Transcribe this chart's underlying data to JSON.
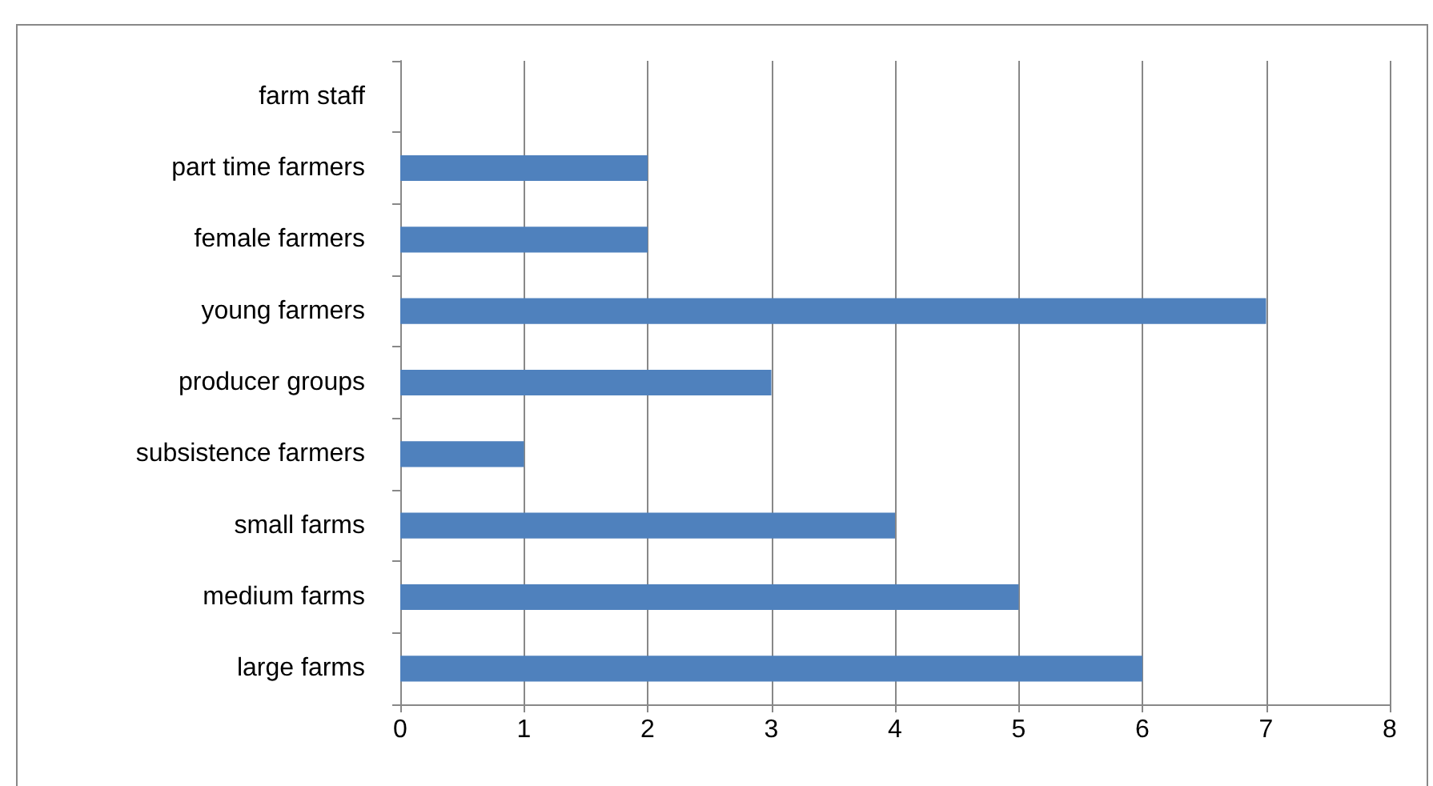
{
  "chart_data": {
    "type": "bar",
    "orientation": "horizontal",
    "categories": [
      "farm staff",
      "part time farmers",
      "female farmers",
      "young farmers",
      "producer groups",
      "subsistence farmers",
      "small farms",
      "medium farms",
      "large farms"
    ],
    "values": [
      0,
      2,
      2,
      7,
      3,
      1,
      4,
      5,
      6
    ],
    "color": "#4f81bd",
    "xlim": [
      0,
      8
    ],
    "xticks": [
      0,
      1,
      2,
      3,
      4,
      5,
      6,
      7,
      8
    ],
    "grid": "x"
  }
}
